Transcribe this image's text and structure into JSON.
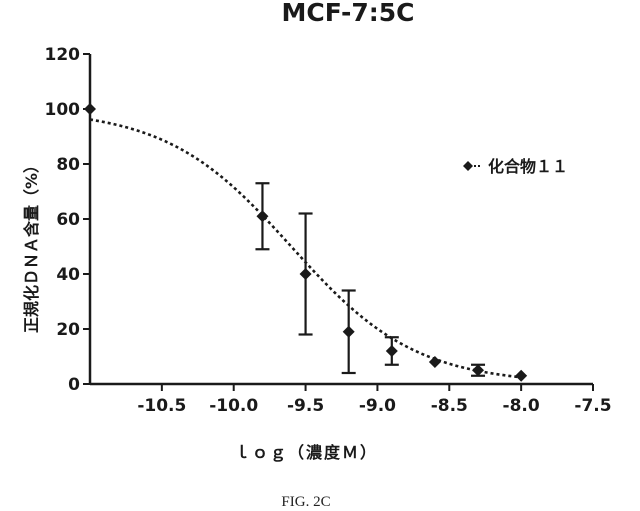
{
  "chart_data": {
    "type": "scatter",
    "title": "MCF-7:5C",
    "xlabel": "ｌｏｇ（濃度Ｍ）",
    "ylabel": "正規化ＤＮＡ含量（%）",
    "xlim": [
      -11.0,
      -7.5
    ],
    "ylim": [
      0,
      120
    ],
    "xticks": [
      -10.5,
      -10.0,
      -9.5,
      -9.0,
      -8.5,
      -8.0,
      -7.5
    ],
    "xtick_labels": [
      "-10.5",
      "-10.0",
      "-9.5",
      "-9.0",
      "-8.5",
      "-8.0",
      "-7.5"
    ],
    "yticks": [
      0,
      20,
      40,
      60,
      80,
      100,
      120
    ],
    "ytick_labels": [
      "0",
      "20",
      "40",
      "60",
      "80",
      "100",
      "120"
    ],
    "legend_position": "right",
    "grid": false,
    "series": [
      {
        "name": "化合物１１",
        "marker": "diamond",
        "color": "#1a1a1a",
        "points": [
          {
            "x": -11.0,
            "y": 100,
            "err": 0
          },
          {
            "x": -9.8,
            "y": 61,
            "err": 12
          },
          {
            "x": -9.5,
            "y": 40,
            "err": 22
          },
          {
            "x": -9.2,
            "y": 19,
            "err": 15
          },
          {
            "x": -8.9,
            "y": 12,
            "err": 5
          },
          {
            "x": -8.6,
            "y": 8,
            "err": 0
          },
          {
            "x": -8.3,
            "y": 5,
            "err": 2
          },
          {
            "x": -8.0,
            "y": 3,
            "err": 0
          }
        ]
      }
    ],
    "fit_curve": {
      "style": "dotted",
      "model": "sigmoidal dose-response",
      "top": 100,
      "bottom": 0,
      "log_ic50": -9.6,
      "hill_slope": -1.0
    }
  },
  "caption": "FIG. 2C"
}
